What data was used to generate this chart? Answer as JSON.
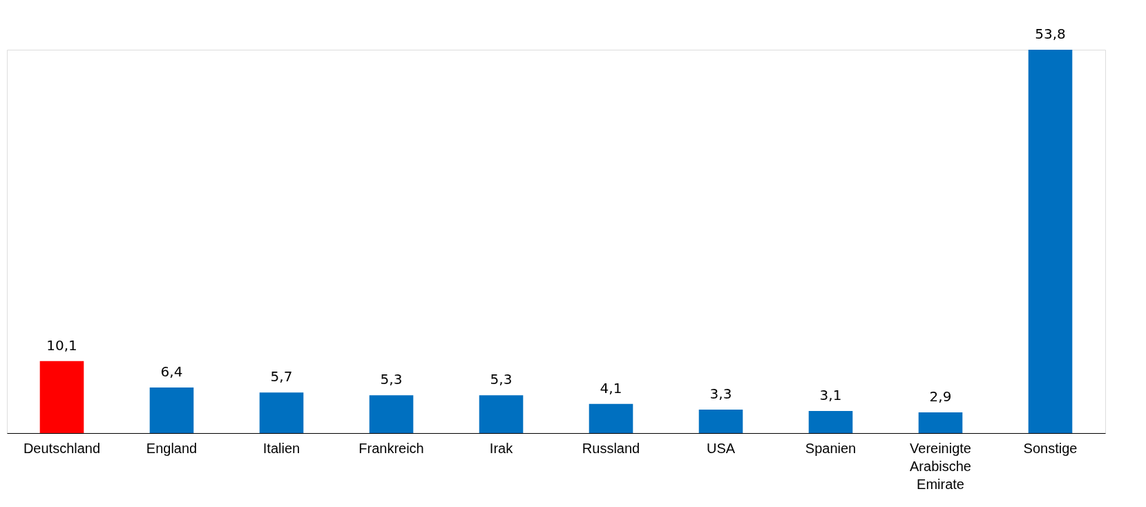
{
  "chart_data": {
    "type": "bar",
    "categories": [
      "Deutschland",
      "England",
      "Italien",
      "Frankreich",
      "Irak",
      "Russland",
      "USA",
      "Spanien",
      "Vereinigte Arabische Emirate",
      "Sonstige"
    ],
    "values": [
      10.1,
      6.4,
      5.7,
      5.3,
      5.3,
      4.1,
      3.3,
      3.1,
      2.9,
      53.8
    ],
    "colors": [
      "#ff0000",
      "#0070c0",
      "#0070c0",
      "#0070c0",
      "#0070c0",
      "#0070c0",
      "#0070c0",
      "#0070c0",
      "#0070c0",
      "#0070c0"
    ],
    "value_labels": [
      "10,1",
      "6,4",
      "5,7",
      "5,3",
      "5,3",
      "4,1",
      "3,3",
      "3,1",
      "2,9",
      "53,8"
    ]
  }
}
